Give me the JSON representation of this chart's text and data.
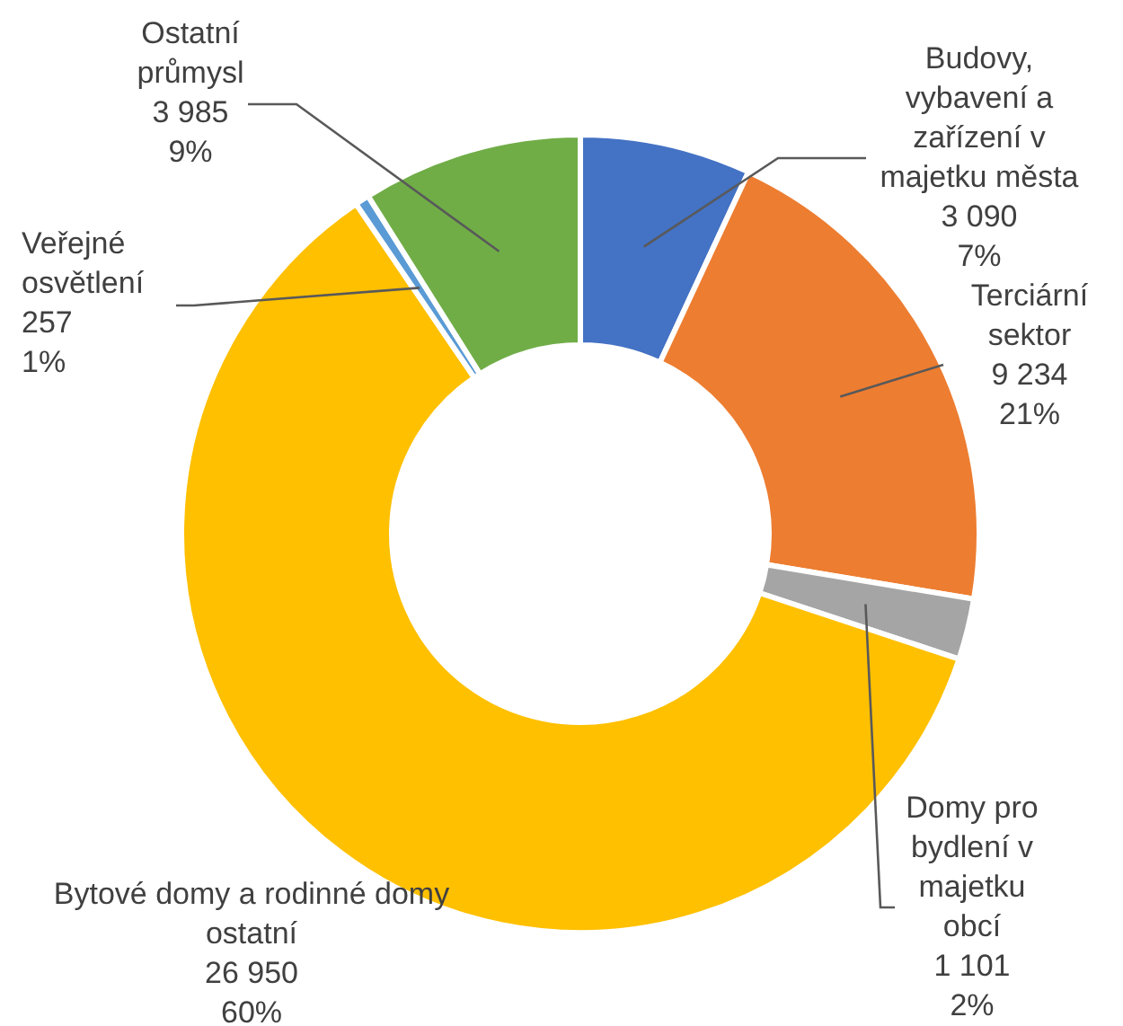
{
  "chart_data": {
    "type": "donut",
    "categories": [
      "Budovy, vybavení a zařízení v majetku města",
      "Terciární sektor",
      "Domy pro bydlení v majetku obcí",
      "Bytové domy a rodinné domy ostatní",
      "Veřejné osvětlení",
      "Ostatní průmysl"
    ],
    "values": [
      3090,
      9234,
      1101,
      26950,
      257,
      3985
    ],
    "colors": [
      "#4472c4",
      "#ed7d31",
      "#a5a5a5",
      "#ffc000",
      "#5b9bd5",
      "#70ad47"
    ],
    "value_labels": [
      "3 090\n7%",
      "9 234\n21%",
      "1 101\n2%",
      "26 950\n60%",
      "257\n1%",
      "3 985\n9%"
    ]
  }
}
